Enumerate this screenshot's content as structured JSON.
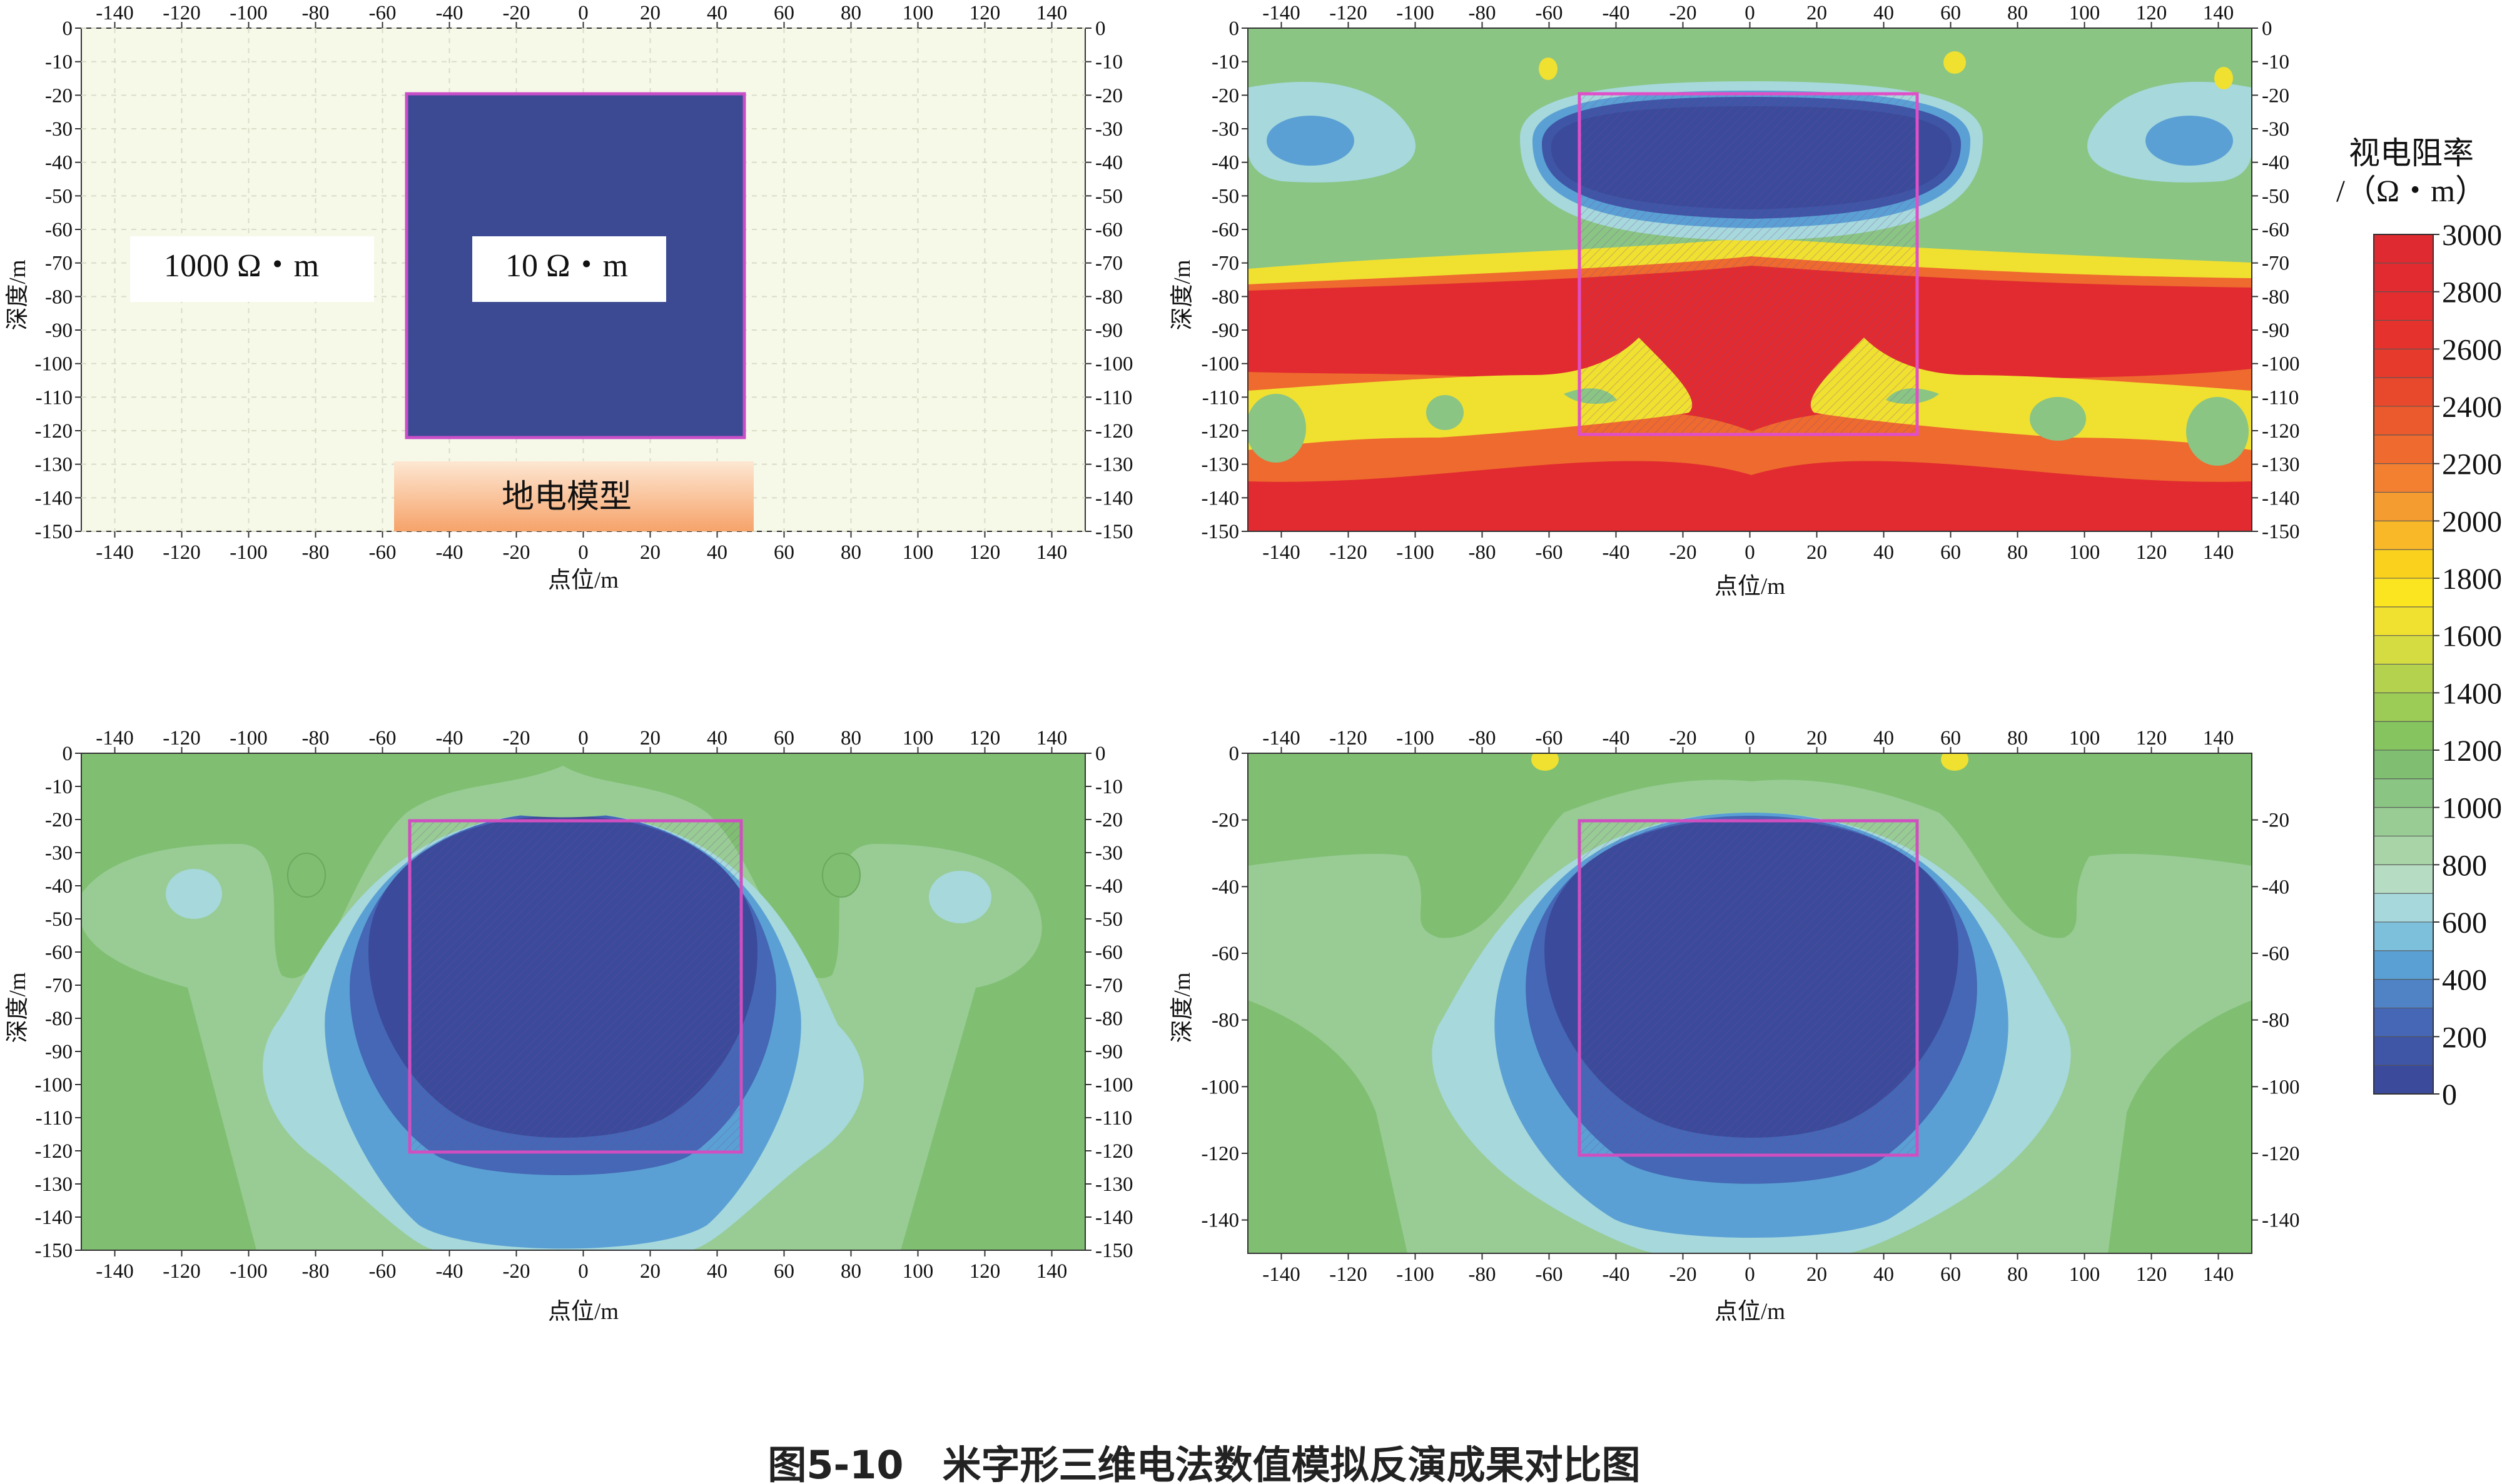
{
  "caption": "图5-10　米字形三维电法数值模拟反演成果对比图",
  "colorbar": {
    "title_line1": "视电阻率",
    "title_line2": "/（Ω・m）",
    "ticks": [
      "3000",
      "2800",
      "2600",
      "2400",
      "2200",
      "2000",
      "1800",
      "1600",
      "1400",
      "1200",
      "1000",
      "800",
      "600",
      "400",
      "200",
      "0"
    ],
    "levels": [
      0,
      100,
      200,
      300,
      400,
      500,
      600,
      700,
      800,
      900,
      1000,
      1100,
      1200,
      1300,
      1400,
      1500,
      1600,
      1700,
      1800,
      1900,
      2000,
      2100,
      2200,
      2300,
      2400,
      2500,
      2600,
      2700,
      2800,
      2900,
      3000
    ],
    "colors": [
      "#3b4a9a",
      "#3f55a6",
      "#4567b5",
      "#4f83c6",
      "#5aa0d4",
      "#7cc0dc",
      "#a6d8dc",
      "#b6dcc4",
      "#a8d4a8",
      "#98cc94",
      "#8ac584",
      "#80bf72",
      "#86c45f",
      "#9ccb56",
      "#b4d24e",
      "#d4dc42",
      "#f0e030",
      "#fbe420",
      "#fad21e",
      "#f8b828",
      "#f59c30",
      "#f28030",
      "#ee6a2e",
      "#ea5a2c",
      "#e8482c",
      "#e63a2c",
      "#e5322c",
      "#e32d2e",
      "#e12b30",
      "#de2a30"
    ]
  },
  "chart_data": [
    {
      "type": "heatmap",
      "name_label": "地电模型",
      "xlabel": "点位/m",
      "ylabel": "深度/m",
      "xlim": [
        -150,
        150
      ],
      "ylim": [
        -150,
        0
      ],
      "x_ticks": [
        -140,
        -120,
        -100,
        -80,
        -60,
        -40,
        -20,
        0,
        20,
        40,
        60,
        80,
        100,
        120,
        140
      ],
      "y_ticks_left": [
        0,
        -10,
        -20,
        -30,
        -40,
        -50,
        -60,
        -70,
        -80,
        -90,
        -100,
        -110,
        -120,
        -130,
        -140,
        -150
      ],
      "y_ticks_right": [
        0,
        -10,
        -20,
        -30,
        -40,
        -50,
        -60,
        -70,
        -80,
        -90,
        -100,
        -110,
        -120,
        -130,
        -140,
        -150
      ],
      "grid": true,
      "background_resistivity": "1000 Ω・m",
      "anomaly_resistivity": "10 Ω・m",
      "anomaly_body": {
        "x": [
          -50,
          50
        ],
        "depth": [
          -20,
          -120
        ]
      }
    },
    {
      "type": "heatmap",
      "xlabel": "点位/m",
      "ylabel": "深度/m",
      "xlim": [
        -150,
        150
      ],
      "ylim": [
        -150,
        0
      ],
      "x_ticks": [
        -140,
        -120,
        -100,
        -80,
        -60,
        -40,
        -20,
        0,
        20,
        40,
        60,
        80,
        100,
        120,
        140
      ],
      "y_ticks_left": [
        0,
        -10,
        -20,
        -30,
        -40,
        -50,
        -60,
        -70,
        -80,
        -90,
        -100,
        -110,
        -120,
        -130,
        -140,
        -150
      ],
      "y_ticks_right": [
        0,
        -10,
        -20,
        -30,
        -40,
        -50,
        -60,
        -70,
        -80,
        -90,
        -100,
        -110,
        -120,
        -130,
        -140,
        -150
      ],
      "anomaly_body": {
        "x": [
          -50,
          50
        ],
        "depth": [
          -20,
          -120
        ]
      }
    },
    {
      "type": "heatmap",
      "xlabel": "点位/m",
      "ylabel": "深度/m",
      "xlim": [
        -150,
        150
      ],
      "ylim": [
        -150,
        0
      ],
      "x_ticks": [
        -140,
        -120,
        -100,
        -80,
        -60,
        -40,
        -20,
        0,
        20,
        40,
        60,
        80,
        100,
        120,
        140
      ],
      "y_ticks_left": [
        0,
        -10,
        -20,
        -30,
        -40,
        -50,
        -60,
        -70,
        -80,
        -90,
        -100,
        -110,
        -120,
        -130,
        -140,
        -150
      ],
      "y_ticks_right": [
        0,
        -10,
        -20,
        -30,
        -40,
        -50,
        -60,
        -70,
        -80,
        -90,
        -100,
        -110,
        -120,
        -130,
        -140,
        -150
      ],
      "anomaly_body": {
        "x": [
          -50,
          50
        ],
        "depth": [
          -20,
          -120
        ]
      }
    },
    {
      "type": "heatmap",
      "xlabel": "点位/m",
      "ylabel": "深度/m",
      "xlim": [
        -150,
        150
      ],
      "ylim": [
        -150,
        0
      ],
      "x_ticks": [
        -140,
        -120,
        -100,
        -80,
        -60,
        -40,
        -20,
        0,
        20,
        40,
        60,
        80,
        100,
        120,
        140
      ],
      "y_ticks_left": [
        0,
        -20,
        -40,
        -60,
        -80,
        -100,
        -120,
        -140
      ],
      "y_ticks_right": [
        -20,
        -40,
        -60,
        -80,
        -100,
        -120,
        -140
      ],
      "anomaly_body": {
        "x": [
          -50,
          50
        ],
        "depth": [
          -20,
          -120
        ]
      }
    }
  ]
}
